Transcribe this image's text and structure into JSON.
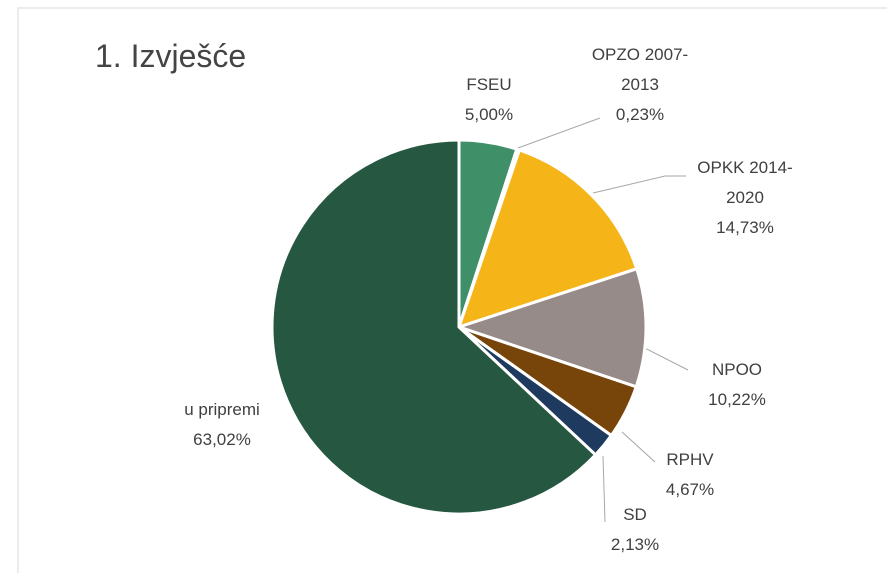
{
  "chart_data": {
    "type": "pie",
    "title": "1. Izvješće",
    "categories": [
      "FSEU",
      "OPZO 2007-2013",
      "OPKK 2014-2020",
      "NPOO",
      "RPHV",
      "SD",
      "u pripremi"
    ],
    "values": [
      5.0,
      0.23,
      14.73,
      10.22,
      4.67,
      2.13,
      63.02
    ],
    "value_labels": [
      "5,00%",
      "0,23%",
      "14,73%",
      "10,22%",
      "4,67%",
      "2,13%",
      "63,02%"
    ],
    "colors": [
      "#3f8f68",
      "#6b8f7a",
      "#f5b519",
      "#968b88",
      "#774509",
      "#1f3a5f",
      "#265740"
    ]
  }
}
